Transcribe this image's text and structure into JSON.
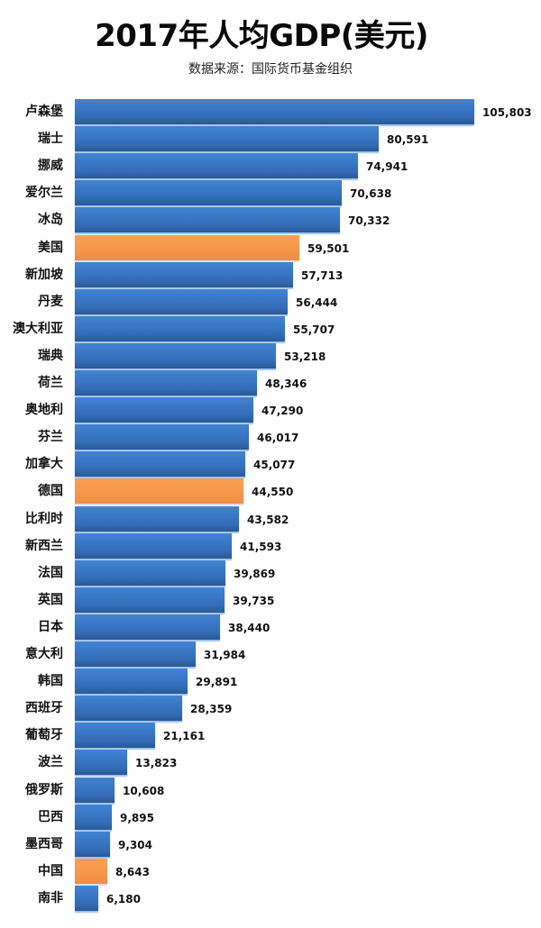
{
  "title": "2017年人均GDP(美元)",
  "subtitle": "数据来源：国际货币基金组织",
  "colors": {
    "default_bar": "#3A78C6",
    "highlight_bar": "#F7964A",
    "text": "#111111",
    "background": "#FFFFFF"
  },
  "chart_data": {
    "type": "bar",
    "orientation": "horizontal",
    "title": "2017年人均GDP(美元)",
    "subtitle": "数据来源：国际货币基金组织",
    "xlabel": "",
    "ylabel": "",
    "grid": false,
    "legend": null,
    "data_labels": true,
    "xlim": [
      0,
      105803
    ],
    "categories": [
      "卢森堡",
      "瑞士",
      "挪威",
      "爱尔兰",
      "冰岛",
      "美国",
      "新加坡",
      "丹麦",
      "澳大利亚",
      "瑞典",
      "荷兰",
      "奥地利",
      "芬兰",
      "加拿大",
      "德国",
      "比利时",
      "新西兰",
      "法国",
      "英国",
      "日本",
      "意大利",
      "韩国",
      "西班牙",
      "葡萄牙",
      "波兰",
      "俄罗斯",
      "巴西",
      "墨西哥",
      "中国",
      "南非"
    ],
    "values": [
      105803,
      80591,
      74941,
      70638,
      70332,
      59501,
      57713,
      56444,
      55707,
      53218,
      48346,
      47290,
      46017,
      45077,
      44550,
      43582,
      41593,
      39869,
      39735,
      38440,
      31984,
      29891,
      28359,
      21161,
      13823,
      10608,
      9895,
      9304,
      8643,
      6180
    ],
    "value_labels": [
      "105,803",
      "80,591",
      "74,941",
      "70,638",
      "70,332",
      "59,501",
      "57,713",
      "56,444",
      "55,707",
      "53,218",
      "48,346",
      "47,290",
      "46,017",
      "45,077",
      "44,550",
      "43,582",
      "41,593",
      "39,869",
      "39,735",
      "38,440",
      "31,984",
      "29,891",
      "28,359",
      "21,161",
      "13,823",
      "10,608",
      "9,895",
      "9,304",
      "8,643",
      "6,180"
    ],
    "highlighted": [
      "美国",
      "德国",
      "中国"
    ]
  }
}
